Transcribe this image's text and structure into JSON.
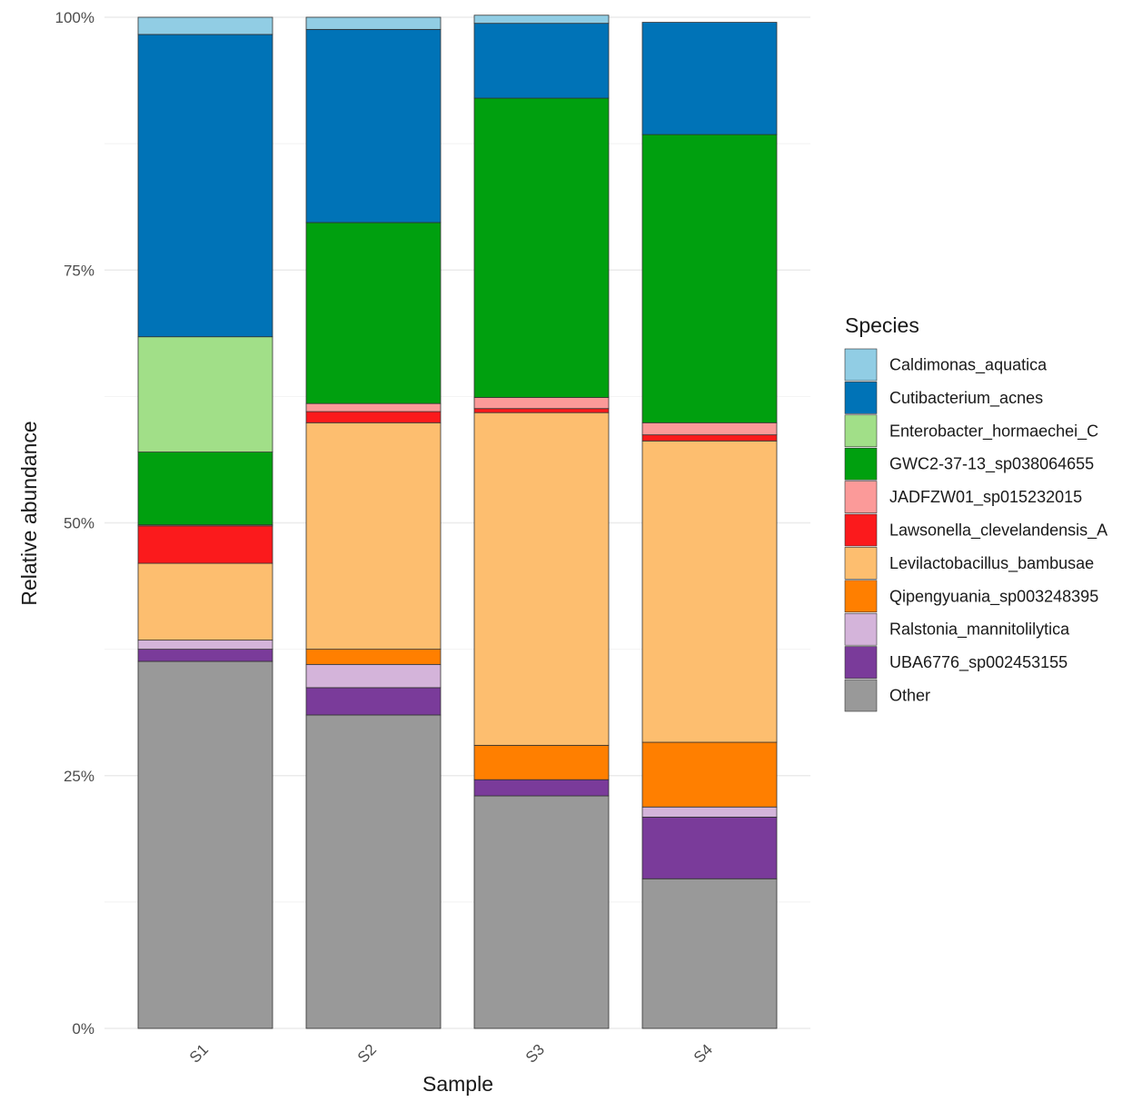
{
  "chart_data": {
    "type": "bar",
    "stacked": true,
    "xlabel": "Sample",
    "ylabel": "Relative abundance",
    "categories": [
      "S1",
      "S2",
      "S3",
      "S4"
    ],
    "ylim": [
      0,
      100
    ],
    "yticks": [
      0,
      25,
      50,
      75,
      100
    ],
    "ytick_labels": [
      "0%",
      "25%",
      "50%",
      "75%",
      "100%"
    ],
    "grid": true,
    "legend": {
      "title": "Species",
      "position": "right"
    },
    "series": [
      {
        "name": "Other",
        "color": "#999999",
        "values": [
          36.3,
          31.0,
          23.0,
          14.8
        ]
      },
      {
        "name": "UBA6776_sp002453155",
        "color": "#7a3b9a",
        "values": [
          1.2,
          2.7,
          1.6,
          6.1
        ]
      },
      {
        "name": "Ralstonia_mannitolilytica",
        "color": "#d4b4da",
        "values": [
          0.9,
          2.3,
          0.0,
          1.0
        ]
      },
      {
        "name": "Qipengyuania_sp003248395",
        "color": "#ff7f00",
        "values": [
          0.0,
          1.5,
          3.4,
          6.4
        ]
      },
      {
        "name": "Levilactobacillus_bambusae",
        "color": "#fdbe6f",
        "values": [
          7.6,
          22.4,
          32.9,
          29.8
        ]
      },
      {
        "name": "Lawsonella_clevelandensis_A",
        "color": "#fb1a1c",
        "values": [
          3.7,
          1.1,
          0.4,
          0.6
        ]
      },
      {
        "name": "JADFZW01_sp015232015",
        "color": "#fb9a99",
        "values": [
          0.1,
          0.8,
          1.1,
          1.2
        ]
      },
      {
        "name": "GWC2-37-13_sp038064655",
        "color": "#00a00f",
        "values": [
          7.2,
          17.9,
          29.6,
          28.5
        ]
      },
      {
        "name": "Enterobacter_hormaechei_C",
        "color": "#a1df88",
        "values": [
          11.4,
          0.0,
          0.0,
          0.0
        ]
      },
      {
        "name": "Cutibacterium_acnes",
        "color": "#0073b7",
        "values": [
          29.9,
          19.1,
          7.4,
          11.1
        ]
      },
      {
        "name": "Caldimonas_aquatica",
        "color": "#91cde4",
        "values": [
          1.7,
          1.2,
          0.8,
          0.0
        ]
      }
    ],
    "legend_order": [
      "Caldimonas_aquatica",
      "Cutibacterium_acnes",
      "Enterobacter_hormaechei_C",
      "GWC2-37-13_sp038064655",
      "JADFZW01_sp015232015",
      "Lawsonella_clevelandensis_A",
      "Levilactobacillus_bambusae",
      "Qipengyuania_sp003248395",
      "Ralstonia_mannitolilytica",
      "UBA6776_sp002453155",
      "Other"
    ]
  }
}
